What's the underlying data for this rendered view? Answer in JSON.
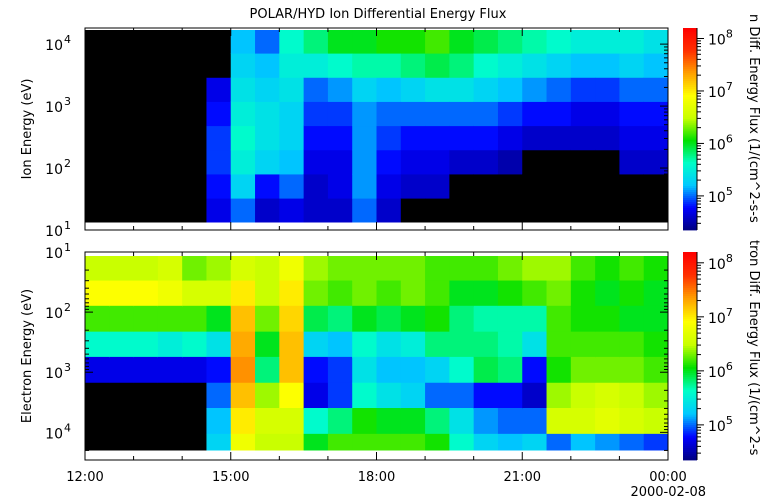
{
  "title": "POLAR/HYD  Ion Differential Energy Flux",
  "colors": {
    "colormap": [
      "#00007f",
      "#0000ff",
      "#00c8ff",
      "#00ffc8",
      "#00e000",
      "#c8ff00",
      "#ffff00",
      "#ffa000",
      "#ff3000",
      "#ff0000"
    ],
    "nodata": "#000000",
    "frame": "#000000"
  },
  "chart_data": [
    {
      "type": "heatmap",
      "panel": "ion",
      "title": "POLAR/HYD  Ion Differential Energy Flux",
      "ylabel": "Ion Energy (eV)",
      "yscale": "log",
      "ylim_exp": [
        1,
        4.26
      ],
      "y_reversed": false,
      "ytick_base": "10",
      "ytick_exponents": [
        1,
        2,
        3,
        4
      ],
      "xlim": [
        "12:00",
        "24:00"
      ],
      "x_bins": [
        "12:00",
        "12:30",
        "13:00",
        "13:30",
        "14:00",
        "14:30",
        "15:00",
        "15:30",
        "16:00",
        "16:30",
        "17:00",
        "17:30",
        "18:00",
        "18:30",
        "19:00",
        "19:30",
        "20:00",
        "20:30",
        "21:00",
        "21:30",
        "22:00",
        "22:30",
        "23:00",
        "23:30"
      ],
      "energy_bin_log10_eV": [
        1.32,
        1.71,
        2.1,
        2.49,
        2.88,
        3.27,
        3.66,
        4.05
      ],
      "log10_flux": [
        [
          null,
          null,
          null,
          null,
          null,
          null,
          null,
          null
        ],
        [
          null,
          null,
          null,
          null,
          null,
          null,
          null,
          null
        ],
        [
          null,
          null,
          null,
          null,
          null,
          null,
          null,
          null
        ],
        [
          null,
          null,
          null,
          null,
          null,
          null,
          null,
          null
        ],
        [
          null,
          null,
          null,
          null,
          null,
          null,
          null,
          null
        ],
        [
          4.7,
          4.8,
          4.9,
          4.9,
          4.8,
          4.7,
          null,
          null
        ],
        [
          5.0,
          5.3,
          5.5,
          5.6,
          5.5,
          5.4,
          5.3,
          5.2
        ],
        [
          4.6,
          4.8,
          5.3,
          5.4,
          5.4,
          5.3,
          5.2,
          5.0
        ],
        [
          4.7,
          5.0,
          5.2,
          5.3,
          5.3,
          5.4,
          5.5,
          5.6
        ],
        [
          4.6,
          4.6,
          4.7,
          4.8,
          4.9,
          5.0,
          5.5,
          5.8
        ],
        [
          4.6,
          4.7,
          4.7,
          4.8,
          4.9,
          5.1,
          5.6,
          6.0
        ],
        [
          5.0,
          5.1,
          5.1,
          5.1,
          5.1,
          5.3,
          5.7,
          6.0
        ],
        [
          4.6,
          4.7,
          4.8,
          4.9,
          5.0,
          5.2,
          5.7,
          6.1
        ],
        [
          null,
          4.6,
          4.7,
          4.8,
          5.0,
          5.3,
          5.8,
          6.1
        ],
        [
          null,
          4.6,
          4.7,
          4.8,
          5.0,
          5.4,
          5.9,
          6.2
        ],
        [
          null,
          null,
          4.6,
          4.8,
          5.0,
          5.4,
          5.8,
          6.0
        ],
        [
          null,
          null,
          4.6,
          4.8,
          5.0,
          5.3,
          5.6,
          5.9
        ],
        [
          null,
          null,
          4.5,
          4.7,
          4.9,
          5.2,
          5.5,
          5.8
        ],
        [
          null,
          null,
          null,
          4.6,
          4.8,
          5.1,
          5.4,
          5.7
        ],
        [
          null,
          null,
          null,
          4.6,
          4.8,
          5.0,
          5.3,
          5.6
        ],
        [
          null,
          null,
          null,
          4.6,
          4.7,
          4.9,
          5.2,
          5.5
        ],
        [
          null,
          null,
          null,
          4.6,
          4.7,
          4.9,
          5.2,
          5.5
        ],
        [
          null,
          null,
          4.6,
          4.7,
          4.8,
          5.0,
          5.3,
          5.5
        ],
        [
          null,
          null,
          4.6,
          4.7,
          4.8,
          5.0,
          5.2,
          5.4
        ]
      ],
      "colorbar": {
        "label": "n Diff. Energy Flux (1/(cm^2-s-s",
        "scale": "log",
        "range_exp": [
          4.35,
          8.2
        ],
        "tick_exponents": [
          5,
          6,
          7,
          8
        ]
      }
    },
    {
      "type": "heatmap",
      "panel": "electron",
      "ylabel": "Electron Energy (eV)",
      "yscale": "log",
      "ylim_exp": [
        1,
        4.46
      ],
      "y_reversed": true,
      "ytick_base": "10",
      "ytick_exponents": [
        1,
        2,
        3,
        4
      ],
      "xlim": [
        "12:00",
        "24:00"
      ],
      "x_bins": [
        "12:00",
        "12:30",
        "13:00",
        "13:30",
        "14:00",
        "14:30",
        "15:00",
        "15:30",
        "16:00",
        "16:30",
        "17:00",
        "17:30",
        "18:00",
        "18:30",
        "19:00",
        "19:30",
        "20:00",
        "20:30",
        "21:00",
        "21:30",
        "22:00",
        "22:30",
        "23:00",
        "23:30"
      ],
      "energy_bin_log10_eV": [
        1.26,
        1.69,
        2.11,
        2.54,
        2.96,
        3.39,
        3.81,
        4.24
      ],
      "log10_flux": [
        [
          6.5,
          6.9,
          6.2,
          5.6,
          4.7,
          null,
          null,
          null
        ],
        [
          6.5,
          6.9,
          6.2,
          5.6,
          4.7,
          null,
          null,
          null
        ],
        [
          6.5,
          6.9,
          6.2,
          5.6,
          4.7,
          null,
          null,
          null
        ],
        [
          6.6,
          6.8,
          6.2,
          5.5,
          4.7,
          null,
          null,
          null
        ],
        [
          6.3,
          6.6,
          6.2,
          5.6,
          4.7,
          null,
          null,
          null
        ],
        [
          6.4,
          6.6,
          6.0,
          5.4,
          4.8,
          5.0,
          5.2,
          5.3
        ],
        [
          6.6,
          7.0,
          7.2,
          7.3,
          7.4,
          7.2,
          7.0,
          6.8
        ],
        [
          6.5,
          6.5,
          6.3,
          6.0,
          5.8,
          6.4,
          6.6,
          6.5
        ],
        [
          6.8,
          7.0,
          7.1,
          7.2,
          7.2,
          6.9,
          6.6,
          6.5
        ],
        [
          6.4,
          6.3,
          5.9,
          5.3,
          4.8,
          4.7,
          5.6,
          6.0
        ],
        [
          6.3,
          6.2,
          5.8,
          5.2,
          4.9,
          4.9,
          5.8,
          6.2
        ],
        [
          6.3,
          6.3,
          6.0,
          5.6,
          5.4,
          5.6,
          6.1,
          6.2
        ],
        [
          6.3,
          6.2,
          5.9,
          5.4,
          5.2,
          5.4,
          6.0,
          6.2
        ],
        [
          6.3,
          6.3,
          6.0,
          5.5,
          5.2,
          5.3,
          6.0,
          6.2
        ],
        [
          6.2,
          6.2,
          6.1,
          5.8,
          5.3,
          5.0,
          5.8,
          6.1
        ],
        [
          6.2,
          6.0,
          5.8,
          5.8,
          5.6,
          5.0,
          5.4,
          5.6
        ],
        [
          6.2,
          6.0,
          5.7,
          5.8,
          5.9,
          4.8,
          5.1,
          5.3
        ],
        [
          6.3,
          6.1,
          5.7,
          5.7,
          5.8,
          4.8,
          5.0,
          5.2
        ],
        [
          6.4,
          6.2,
          5.7,
          5.4,
          4.8,
          4.6,
          5.0,
          5.3
        ],
        [
          6.4,
          6.3,
          6.2,
          6.2,
          6.1,
          6.4,
          6.6,
          5.0
        ],
        [
          6.2,
          6.1,
          6.1,
          6.2,
          6.3,
          6.5,
          6.6,
          5.2
        ],
        [
          6.1,
          6.0,
          6.1,
          6.2,
          6.3,
          6.6,
          6.7,
          5.1
        ],
        [
          6.2,
          6.1,
          6.0,
          6.2,
          6.3,
          6.5,
          6.6,
          5.0
        ],
        [
          6.1,
          6.0,
          6.0,
          6.1,
          6.2,
          6.4,
          6.5,
          4.9
        ]
      ],
      "colorbar": {
        "label": "tron Diff. Energy Flux (1/(cm^2-s",
        "scale": "log",
        "range_exp": [
          4.35,
          8.2
        ],
        "tick_exponents": [
          5,
          6,
          7,
          8
        ]
      }
    }
  ],
  "xaxis": {
    "tick_labels": [
      "12:00",
      "15:00",
      "18:00",
      "21:00",
      "00:00"
    ],
    "date_label": "2000-02-08"
  }
}
